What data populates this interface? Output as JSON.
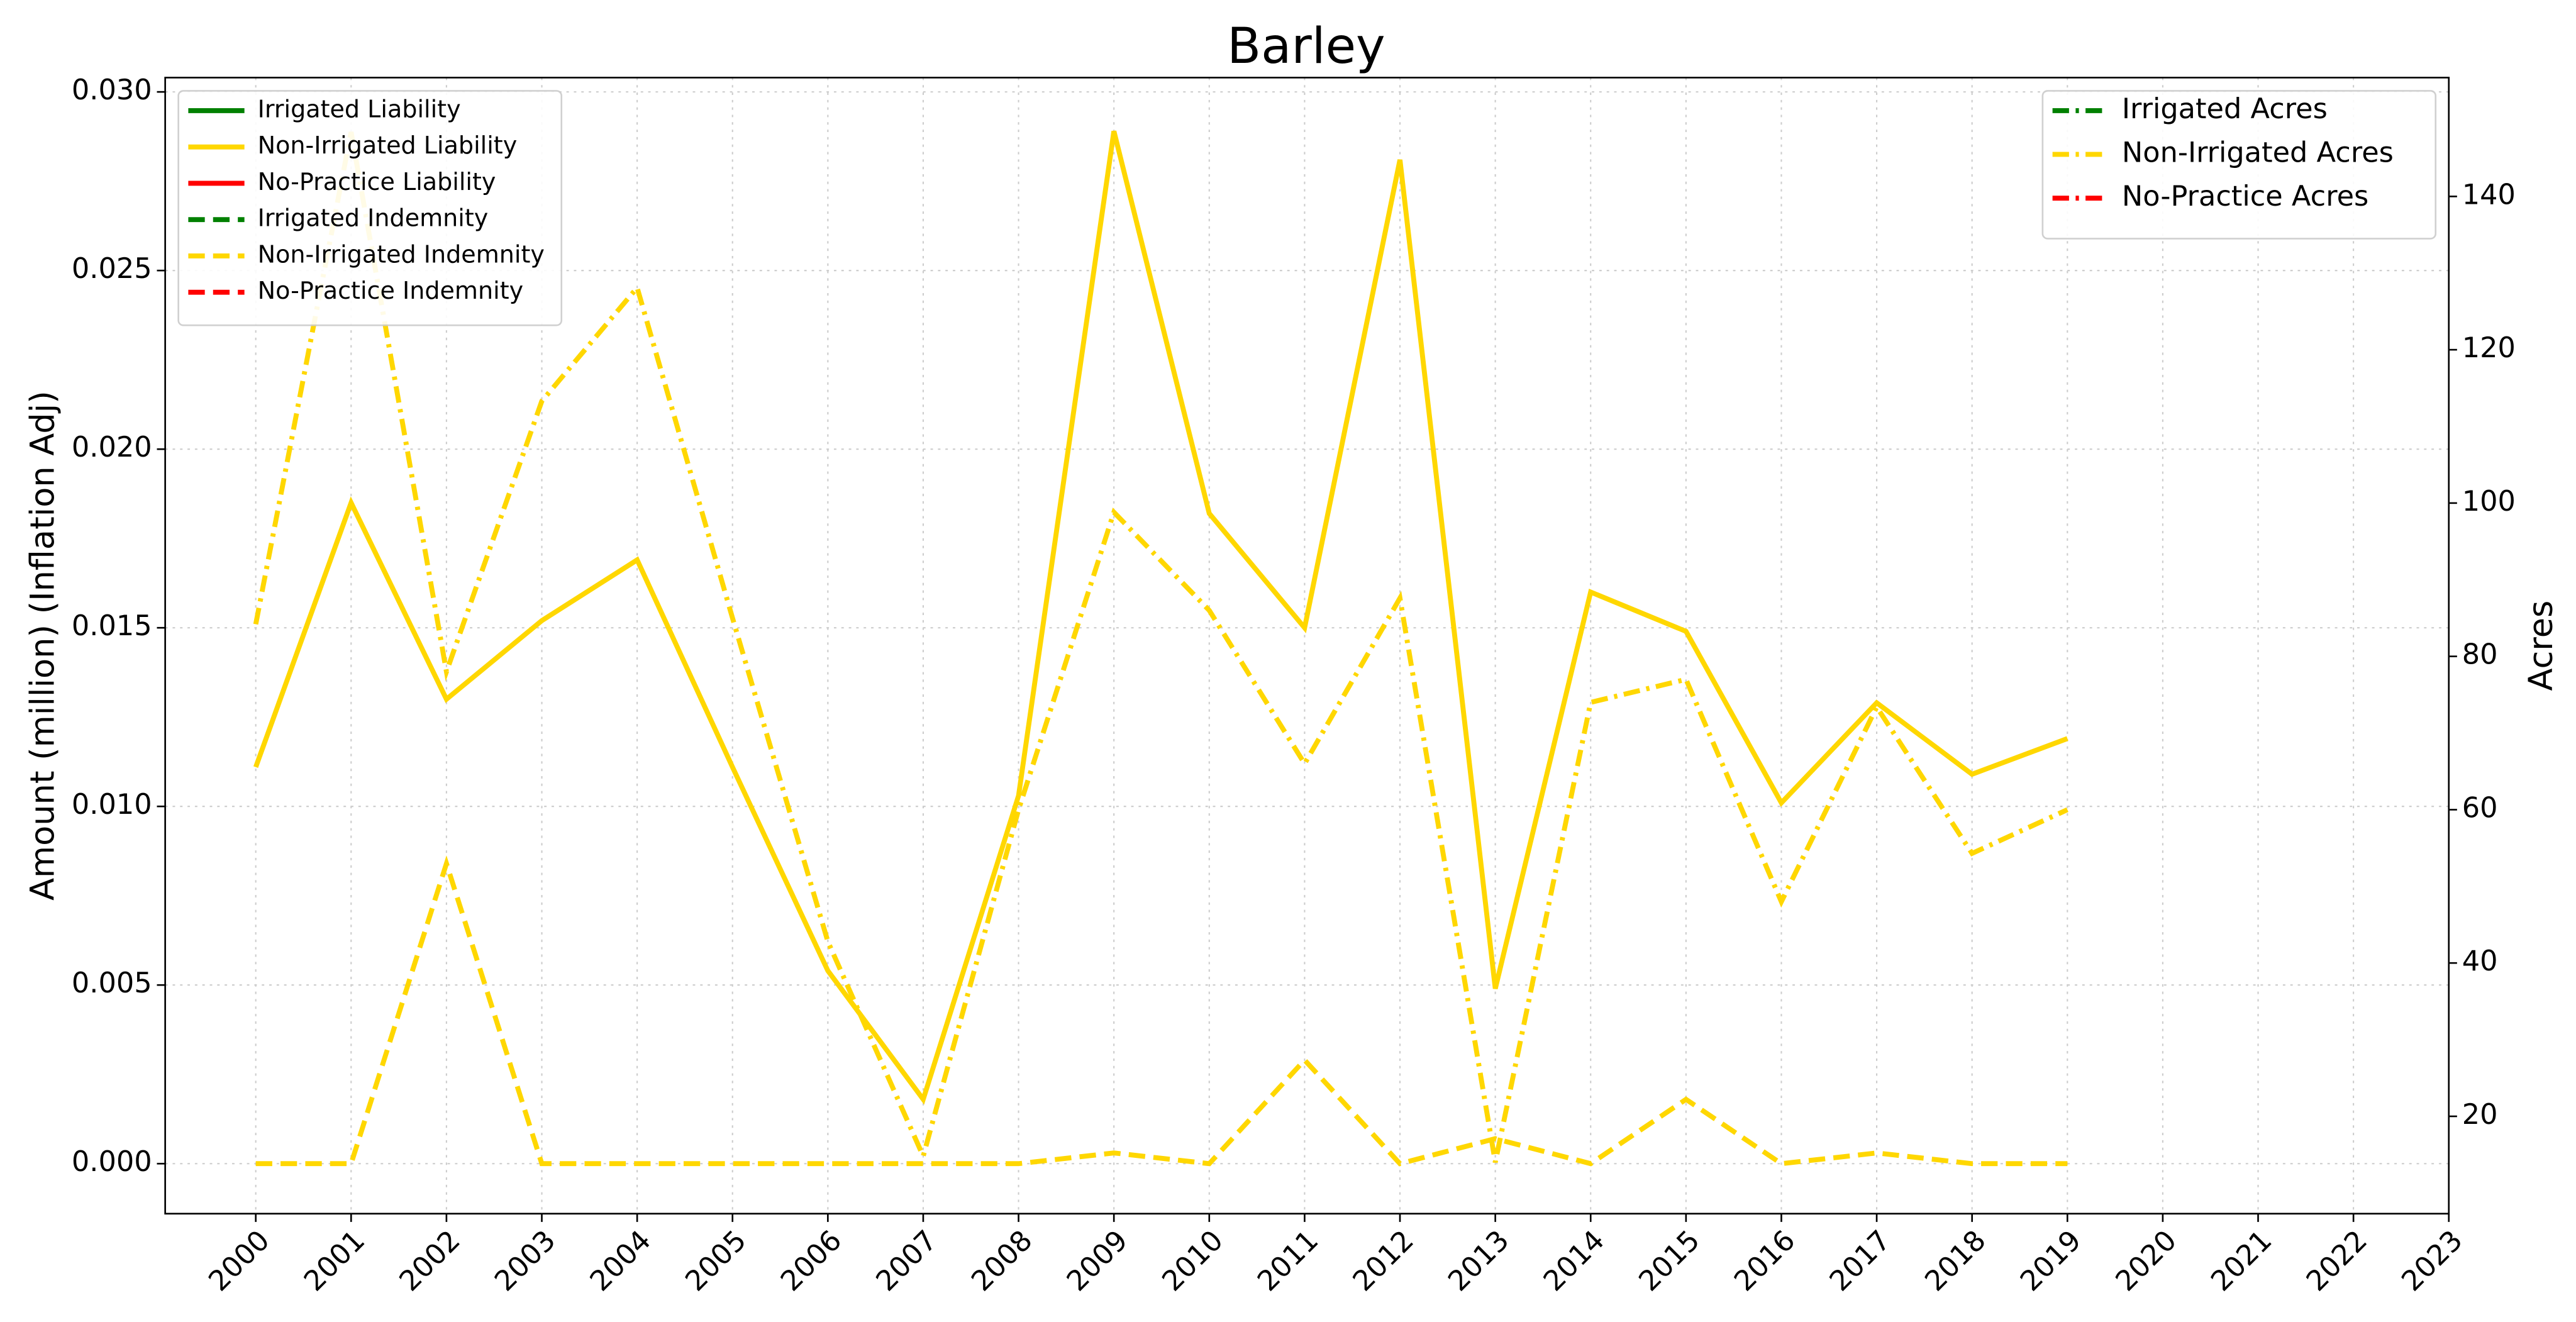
{
  "chart_data": {
    "type": "line",
    "title": "Barley",
    "ylabel": "Amount (million) (Inflation Adj)",
    "y2label": "Acres",
    "x": [
      2000,
      2001,
      2002,
      2003,
      2004,
      2005,
      2006,
      2007,
      2008,
      2009,
      2010,
      2011,
      2012,
      2013,
      2014,
      2015,
      2016,
      2017,
      2018,
      2019,
      2020,
      2021,
      2022,
      2023
    ],
    "xlim": [
      1999.05,
      2023
    ],
    "xticks": [
      2000,
      2001,
      2002,
      2003,
      2004,
      2005,
      2006,
      2007,
      2008,
      2009,
      2010,
      2011,
      2012,
      2013,
      2014,
      2015,
      2016,
      2017,
      2018,
      2019,
      2020,
      2021,
      2022,
      2023
    ],
    "ylim": [
      -0.0014,
      0.0304
    ],
    "yticks": [
      {
        "value": 0,
        "label": "0.000"
      },
      {
        "value": 0.005,
        "label": "0.005"
      },
      {
        "value": 0.01,
        "label": "0.010"
      },
      {
        "value": 0.015,
        "label": "0.015"
      },
      {
        "value": 0.02,
        "label": "0.020"
      },
      {
        "value": 0.025,
        "label": "0.025"
      },
      {
        "value": 0.03,
        "label": "0.030"
      }
    ],
    "y2lim": [
      7.3,
      155.5
    ],
    "y2ticks": [
      20,
      40,
      60,
      80,
      100,
      120,
      140
    ],
    "grid": true,
    "legend": "upper left",
    "legend2": "upper right",
    "series": [
      {
        "name": "Irrigated Liability",
        "color": "#008000",
        "style": "solid",
        "values": [
          null,
          null,
          null,
          null,
          null,
          null,
          null,
          null,
          null,
          null,
          null,
          null,
          null,
          null,
          null,
          null,
          null,
          null,
          null,
          null,
          null,
          null,
          null,
          null
        ]
      },
      {
        "name": "Non-Irrigated Liability",
        "color": "#ffd700",
        "style": "solid",
        "values": [
          0.0111,
          0.0185,
          0.013,
          0.0152,
          0.0169,
          0.0111,
          0.0054,
          0.0018,
          0.0103,
          0.0289,
          0.0182,
          0.015,
          0.0281,
          0.0049,
          0.016,
          0.0149,
          0.0101,
          0.0129,
          0.0109,
          0.0119,
          null,
          null,
          null,
          null
        ]
      },
      {
        "name": "No-Practice Liability",
        "color": "#ff0000",
        "style": "solid",
        "values": [
          null,
          null,
          null,
          null,
          null,
          null,
          null,
          null,
          null,
          null,
          null,
          null,
          null,
          null,
          null,
          null,
          null,
          null,
          null,
          null,
          null,
          null,
          null,
          null
        ]
      },
      {
        "name": "Irrigated Indemnity",
        "color": "#008000",
        "style": "dashed",
        "values": [
          null,
          null,
          null,
          null,
          null,
          null,
          null,
          null,
          null,
          null,
          null,
          null,
          null,
          null,
          null,
          null,
          null,
          null,
          null,
          null,
          null,
          null,
          null,
          null
        ]
      },
      {
        "name": "Non-Irrigated Indemnity",
        "color": "#ffd700",
        "style": "dashed",
        "values": [
          0,
          0,
          0.0084,
          0,
          0,
          0,
          0,
          0,
          0,
          0.0003,
          0,
          0.0029,
          0,
          0.0007,
          0,
          0.0018,
          0,
          0.0003,
          0,
          0,
          null,
          null,
          null,
          null
        ]
      },
      {
        "name": "No-Practice Indemnity",
        "color": "#ff0000",
        "style": "dashed",
        "values": [
          null,
          null,
          null,
          null,
          null,
          null,
          null,
          null,
          null,
          null,
          null,
          null,
          null,
          null,
          null,
          null,
          null,
          null,
          null,
          null,
          null,
          null,
          null,
          null
        ]
      },
      {
        "name": "Irrigated Acres",
        "color": "#008000",
        "style": "dashdot",
        "axis": "y2",
        "values": [
          null,
          null,
          null,
          null,
          null,
          null,
          null,
          null,
          null,
          null,
          null,
          null,
          null,
          null,
          null,
          null,
          null,
          null,
          null,
          null,
          null,
          null,
          null,
          null
        ]
      },
      {
        "name": "Non-Irrigated Acres",
        "color": "#ffd700",
        "style": "dashdot",
        "axis": "y2",
        "values": [
          84.2,
          148.4,
          78,
          113.3,
          128.1,
          85,
          42.8,
          14.8,
          60,
          98.8,
          86,
          66,
          87.6,
          14,
          74,
          77,
          48,
          73.4,
          54.3,
          60,
          null,
          null,
          null,
          null
        ]
      },
      {
        "name": "No-Practice Acres",
        "color": "#ff0000",
        "style": "dashdot",
        "axis": "y2",
        "values": [
          null,
          null,
          null,
          null,
          null,
          null,
          null,
          null,
          null,
          null,
          null,
          null,
          null,
          null,
          null,
          null,
          null,
          null,
          null,
          null,
          null,
          null,
          null,
          null
        ]
      }
    ]
  }
}
